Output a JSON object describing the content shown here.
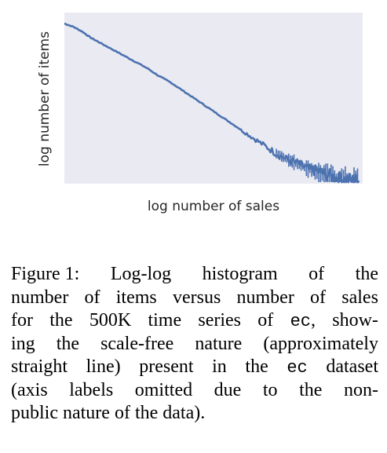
{
  "chart_data": {
    "type": "line",
    "xlabel": "log number of sales",
    "ylabel": "log number of items",
    "x_scale": "log",
    "y_scale": "log",
    "ticks_shown": false,
    "grid": false,
    "background": "#eaeaf2",
    "line_color": "#4c72b0",
    "series": [
      {
        "x": [
          0.0,
          0.03,
          0.06,
          0.09,
          0.12,
          0.16,
          0.2,
          0.24,
          0.28,
          0.32,
          0.36,
          0.4,
          0.44,
          0.48,
          0.52,
          0.56,
          0.6,
          0.64,
          0.68,
          0.72,
          0.76,
          0.8,
          0.83,
          0.86,
          0.89,
          0.92,
          0.95,
          0.98,
          1.0
        ],
        "y": [
          1.0,
          0.98,
          0.95,
          0.91,
          0.88,
          0.84,
          0.8,
          0.76,
          0.72,
          0.67,
          0.63,
          0.58,
          0.53,
          0.48,
          0.43,
          0.38,
          0.33,
          0.28,
          0.23,
          0.18,
          0.14,
          0.11,
          0.08,
          0.07,
          0.05,
          0.03,
          0.02,
          0.01,
          0.01
        ]
      }
    ]
  },
  "caption": {
    "lines": [
      [
        "Figure 1:",
        "Log-log",
        "histogram",
        "of",
        "the"
      ],
      [
        "number",
        "of",
        "items",
        "versus",
        "number",
        "of",
        "sales"
      ],
      [
        "for",
        "the",
        "500K",
        "time",
        "series",
        "of",
        "{ec},",
        "show-"
      ],
      [
        "ing",
        "the",
        "scale-free",
        "nature",
        "(approximately"
      ],
      [
        "straight",
        "line)",
        "present",
        "in",
        "the",
        "{ec}",
        "dataset"
      ],
      [
        "(axis",
        "labels",
        "omitted",
        "due",
        "to",
        "the",
        "non-"
      ],
      [
        "public nature of the data)."
      ]
    ]
  }
}
